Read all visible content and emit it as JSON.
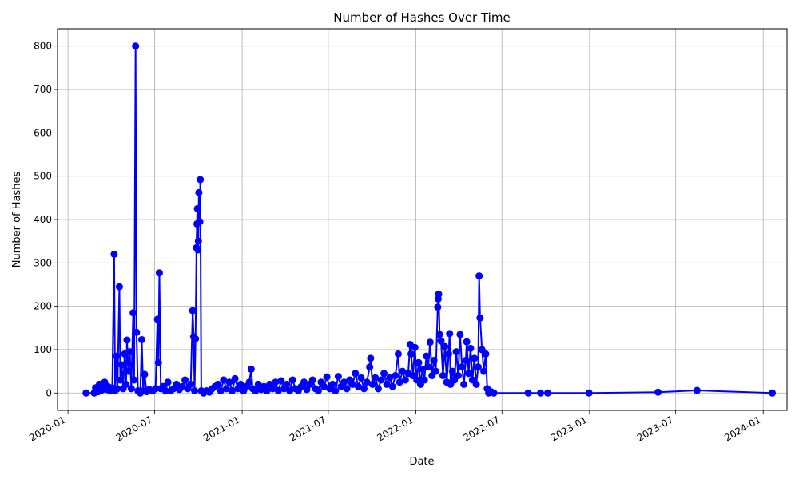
{
  "chart_data": {
    "type": "line",
    "title": "Number of Hashes Over Time",
    "xlabel": "Date",
    "ylabel": "Number of Hashes",
    "xlim": [
      "2019-12-10",
      "2024-02-20"
    ],
    "ylim": [
      -40,
      840
    ],
    "grid": true,
    "line_color": "#0000ff",
    "marker": "circle",
    "x_ticks": [
      "2020-01",
      "2020-07",
      "2021-01",
      "2021-07",
      "2022-01",
      "2022-07",
      "2023-01",
      "2023-07",
      "2024-01"
    ],
    "y_ticks": [
      0,
      100,
      200,
      300,
      400,
      500,
      600,
      700,
      800
    ],
    "series": [
      {
        "points": [
          [
            "2020-02-08",
            0
          ],
          [
            "2020-02-25",
            0
          ],
          [
            "2020-02-28",
            12
          ],
          [
            "2020-03-04",
            3
          ],
          [
            "2020-03-07",
            20
          ],
          [
            "2020-03-10",
            5
          ],
          [
            "2020-03-14",
            10
          ],
          [
            "2020-03-18",
            25
          ],
          [
            "2020-03-21",
            8
          ],
          [
            "2020-03-25",
            15
          ],
          [
            "2020-03-29",
            5
          ],
          [
            "2020-04-03",
            12
          ],
          [
            "2020-04-07",
            320
          ],
          [
            "2020-04-09",
            5
          ],
          [
            "2020-04-12",
            85
          ],
          [
            "2020-04-14",
            10
          ],
          [
            "2020-04-18",
            245
          ],
          [
            "2020-04-20",
            30
          ],
          [
            "2020-04-23",
            65
          ],
          [
            "2020-04-26",
            10
          ],
          [
            "2020-04-29",
            90
          ],
          [
            "2020-05-02",
            20
          ],
          [
            "2020-05-04",
            122
          ],
          [
            "2020-05-07",
            50
          ],
          [
            "2020-05-10",
            95
          ],
          [
            "2020-05-13",
            10
          ],
          [
            "2020-05-17",
            185
          ],
          [
            "2020-05-19",
            30
          ],
          [
            "2020-05-22",
            800
          ],
          [
            "2020-05-24",
            140
          ],
          [
            "2020-05-27",
            5
          ],
          [
            "2020-06-01",
            0
          ],
          [
            "2020-06-04",
            123
          ],
          [
            "2020-06-07",
            5
          ],
          [
            "2020-06-10",
            43
          ],
          [
            "2020-06-14",
            3
          ],
          [
            "2020-06-20",
            8
          ],
          [
            "2020-06-27",
            5
          ],
          [
            "2020-07-03",
            10
          ],
          [
            "2020-07-07",
            170
          ],
          [
            "2020-07-09",
            70
          ],
          [
            "2020-07-11",
            277
          ],
          [
            "2020-07-14",
            10
          ],
          [
            "2020-07-19",
            15
          ],
          [
            "2020-07-24",
            5
          ],
          [
            "2020-07-29",
            25
          ],
          [
            "2020-08-04",
            5
          ],
          [
            "2020-08-10",
            10
          ],
          [
            "2020-08-16",
            20
          ],
          [
            "2020-08-22",
            8
          ],
          [
            "2020-08-28",
            15
          ],
          [
            "2020-09-03",
            30
          ],
          [
            "2020-09-09",
            10
          ],
          [
            "2020-09-15",
            20
          ],
          [
            "2020-09-19",
            190
          ],
          [
            "2020-09-21",
            130
          ],
          [
            "2020-09-23",
            5
          ],
          [
            "2020-09-25",
            125
          ],
          [
            "2020-09-27",
            335
          ],
          [
            "2020-09-28",
            390
          ],
          [
            "2020-09-29",
            425
          ],
          [
            "2020-09-30",
            330
          ],
          [
            "2020-10-01",
            350
          ],
          [
            "2020-10-02",
            462
          ],
          [
            "2020-10-04",
            395
          ],
          [
            "2020-10-05",
            492
          ],
          [
            "2020-10-07",
            5
          ],
          [
            "2020-10-12",
            0
          ],
          [
            "2020-10-18",
            5
          ],
          [
            "2020-10-24",
            2
          ],
          [
            "2020-10-30",
            10
          ],
          [
            "2020-11-05",
            15
          ],
          [
            "2020-11-11",
            20
          ],
          [
            "2020-11-17",
            5
          ],
          [
            "2020-11-23",
            30
          ],
          [
            "2020-11-29",
            10
          ],
          [
            "2020-12-05",
            25
          ],
          [
            "2020-12-11",
            5
          ],
          [
            "2020-12-17",
            33
          ],
          [
            "2020-12-23",
            10
          ],
          [
            "2020-12-29",
            20
          ],
          [
            "2021-01-04",
            5
          ],
          [
            "2021-01-10",
            15
          ],
          [
            "2021-01-16",
            25
          ],
          [
            "2021-01-20",
            55
          ],
          [
            "2021-01-23",
            10
          ],
          [
            "2021-01-29",
            5
          ],
          [
            "2021-02-04",
            20
          ],
          [
            "2021-02-10",
            8
          ],
          [
            "2021-02-16",
            15
          ],
          [
            "2021-02-22",
            5
          ],
          [
            "2021-02-28",
            20
          ],
          [
            "2021-03-06",
            10
          ],
          [
            "2021-03-12",
            25
          ],
          [
            "2021-03-18",
            5
          ],
          [
            "2021-03-24",
            28
          ],
          [
            "2021-03-30",
            10
          ],
          [
            "2021-04-05",
            20
          ],
          [
            "2021-04-11",
            5
          ],
          [
            "2021-04-17",
            30
          ],
          [
            "2021-04-23",
            10
          ],
          [
            "2021-04-29",
            5
          ],
          [
            "2021-05-05",
            15
          ],
          [
            "2021-05-11",
            25
          ],
          [
            "2021-05-17",
            8
          ],
          [
            "2021-05-23",
            20
          ],
          [
            "2021-05-29",
            30
          ],
          [
            "2021-06-04",
            10
          ],
          [
            "2021-06-10",
            5
          ],
          [
            "2021-06-16",
            25
          ],
          [
            "2021-06-22",
            15
          ],
          [
            "2021-06-28",
            37
          ],
          [
            "2021-07-04",
            10
          ],
          [
            "2021-07-10",
            20
          ],
          [
            "2021-07-16",
            5
          ],
          [
            "2021-07-22",
            38
          ],
          [
            "2021-07-28",
            15
          ],
          [
            "2021-08-03",
            25
          ],
          [
            "2021-08-09",
            10
          ],
          [
            "2021-08-15",
            30
          ],
          [
            "2021-08-21",
            20
          ],
          [
            "2021-08-27",
            45
          ],
          [
            "2021-09-02",
            15
          ],
          [
            "2021-09-08",
            35
          ],
          [
            "2021-09-14",
            10
          ],
          [
            "2021-09-20",
            25
          ],
          [
            "2021-09-26",
            60
          ],
          [
            "2021-09-28",
            80
          ],
          [
            "2021-10-02",
            20
          ],
          [
            "2021-10-08",
            35
          ],
          [
            "2021-10-14",
            10
          ],
          [
            "2021-10-20",
            30
          ],
          [
            "2021-10-26",
            45
          ],
          [
            "2021-11-01",
            20
          ],
          [
            "2021-11-07",
            35
          ],
          [
            "2021-11-13",
            15
          ],
          [
            "2021-11-19",
            40
          ],
          [
            "2021-11-25",
            90
          ],
          [
            "2021-11-28",
            25
          ],
          [
            "2021-12-04",
            50
          ],
          [
            "2021-12-10",
            30
          ],
          [
            "2021-12-16",
            45
          ],
          [
            "2021-12-20",
            112
          ],
          [
            "2021-12-22",
            90
          ],
          [
            "2021-12-26",
            40
          ],
          [
            "2021-12-30",
            105
          ],
          [
            "2022-01-03",
            30
          ],
          [
            "2022-01-07",
            70
          ],
          [
            "2022-01-11",
            20
          ],
          [
            "2022-01-15",
            55
          ],
          [
            "2022-01-19",
            30
          ],
          [
            "2022-01-23",
            85
          ],
          [
            "2022-01-27",
            60
          ],
          [
            "2022-01-31",
            117
          ],
          [
            "2022-02-04",
            40
          ],
          [
            "2022-02-08",
            75
          ],
          [
            "2022-02-12",
            50
          ],
          [
            "2022-02-16",
            198
          ],
          [
            "2022-02-17",
            217
          ],
          [
            "2022-02-18",
            228
          ],
          [
            "2022-02-20",
            135
          ],
          [
            "2022-02-23",
            120
          ],
          [
            "2022-02-27",
            40
          ],
          [
            "2022-03-03",
            107
          ],
          [
            "2022-03-07",
            25
          ],
          [
            "2022-03-11",
            90
          ],
          [
            "2022-03-13",
            137
          ],
          [
            "2022-03-15",
            20
          ],
          [
            "2022-03-19",
            50
          ],
          [
            "2022-03-23",
            30
          ],
          [
            "2022-03-27",
            95
          ],
          [
            "2022-03-31",
            40
          ],
          [
            "2022-04-04",
            135
          ],
          [
            "2022-04-08",
            60
          ],
          [
            "2022-04-12",
            20
          ],
          [
            "2022-04-16",
            75
          ],
          [
            "2022-04-18",
            118
          ],
          [
            "2022-04-22",
            45
          ],
          [
            "2022-04-26",
            103
          ],
          [
            "2022-04-30",
            30
          ],
          [
            "2022-05-04",
            80
          ],
          [
            "2022-05-08",
            20
          ],
          [
            "2022-05-12",
            60
          ],
          [
            "2022-05-14",
            270
          ],
          [
            "2022-05-16",
            173
          ],
          [
            "2022-05-20",
            100
          ],
          [
            "2022-05-24",
            50
          ],
          [
            "2022-05-28",
            90
          ],
          [
            "2022-05-31",
            10
          ],
          [
            "2022-06-03",
            0
          ],
          [
            "2022-06-08",
            3
          ],
          [
            "2022-06-14",
            0
          ],
          [
            "2022-08-25",
            0
          ],
          [
            "2022-09-20",
            0
          ],
          [
            "2022-10-05",
            0
          ],
          [
            "2022-12-31",
            0
          ],
          [
            "2023-05-25",
            2
          ],
          [
            "2023-08-15",
            6
          ],
          [
            "2024-01-20",
            0
          ]
        ]
      }
    ]
  }
}
